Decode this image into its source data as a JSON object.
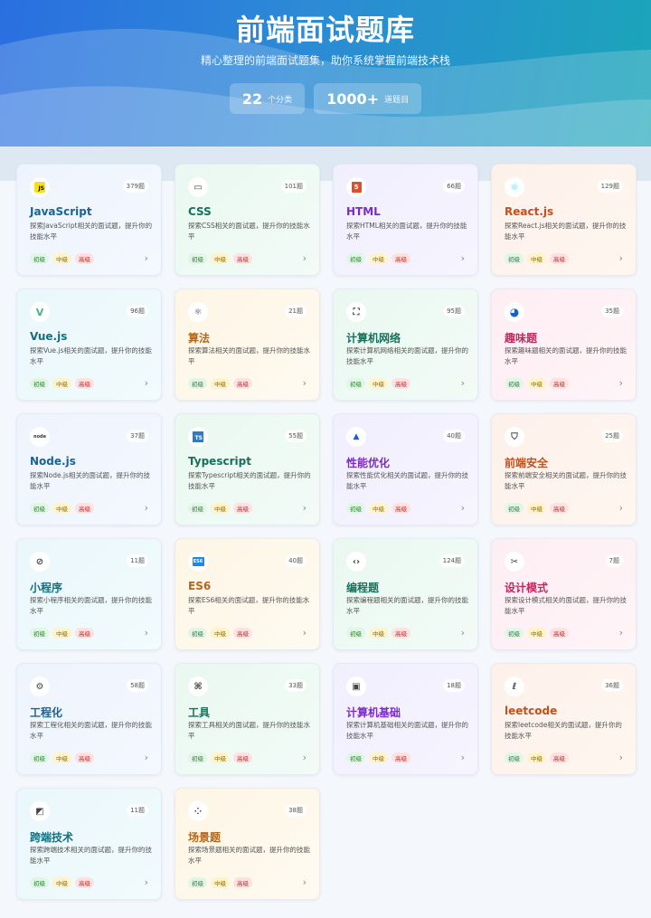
{
  "header": {
    "title": "前端面试题库",
    "subtitle": "精心整理的前端面试题集，助你系统掌握前端技术栈",
    "stats": [
      {
        "num": "22",
        "unit": "个分类"
      },
      {
        "num": "1000+",
        "unit": "道题目"
      }
    ]
  },
  "levels": {
    "easy": "初级",
    "mid": "中级",
    "hard": "高级"
  },
  "colors": {
    "blue": "#1b6396",
    "green": "#17705a",
    "purple": "#7b2cc4",
    "orange": "#c4501c",
    "teal": "#12707f",
    "amber": "#b5661a",
    "pink": "#c0285f"
  },
  "categories": [
    {
      "name": "JavaScript",
      "count": "379题",
      "desc": "探索JavaScript相关的面试题，提升你的技能水平",
      "icon": "js-icon",
      "glyph": "JS",
      "theme": "blue"
    },
    {
      "name": "CSS",
      "count": "101题",
      "desc": "探索CSS相关的面试题，提升你的技能水平",
      "icon": "css-icon",
      "glyph": "▭",
      "theme": "green"
    },
    {
      "name": "HTML",
      "count": "66题",
      "desc": "探索HTML相关的面试题，提升你的技能水平",
      "icon": "html5-icon",
      "glyph": "5",
      "theme": "purple"
    },
    {
      "name": "React.js",
      "count": "129题",
      "desc": "探索React.js相关的面试题，提升你的技能水平",
      "icon": "react-icon",
      "glyph": "⚛",
      "theme": "orange"
    },
    {
      "name": "Vue.js",
      "count": "96题",
      "desc": "探索Vue.js相关的面试题，提升你的技能水平",
      "icon": "vue-icon",
      "glyph": "V",
      "theme": "teal"
    },
    {
      "name": "算法",
      "count": "21题",
      "desc": "探索算法相关的面试题，提升你的技能水平",
      "icon": "atom-icon",
      "glyph": "⚛",
      "theme": "amber"
    },
    {
      "name": "计算机网络",
      "count": "95题",
      "desc": "探索计算机网络相关的面试题，提升你的技能水平",
      "icon": "network-icon",
      "glyph": "⛶",
      "theme": "green"
    },
    {
      "name": "趣味题",
      "count": "35题",
      "desc": "探索趣味题相关的面试题，提升你的技能水平",
      "icon": "pacman-icon",
      "glyph": "◕",
      "theme": "pink"
    },
    {
      "name": "Node.js",
      "count": "37题",
      "desc": "探索Node.js相关的面试题，提升你的技能水平",
      "icon": "nodejs-icon",
      "glyph": "node",
      "theme": "blue"
    },
    {
      "name": "Typescript",
      "count": "55题",
      "desc": "探索Typescript相关的面试题，提升你的技能水平",
      "icon": "typescript-icon",
      "glyph": "TS",
      "theme": "green"
    },
    {
      "name": "性能优化",
      "count": "40题",
      "desc": "探索性能优化相关的面试题，提升你的技能水平",
      "icon": "rocket-icon",
      "glyph": "▲",
      "theme": "purple"
    },
    {
      "name": "前端安全",
      "count": "25题",
      "desc": "探索前端安全相关的面试题，提升你的技能水平",
      "icon": "shield-icon",
      "glyph": "⛉",
      "theme": "orange"
    },
    {
      "name": "小程序",
      "count": "11题",
      "desc": "探索小程序相关的面试题，提升你的技能水平",
      "icon": "miniprogram-icon",
      "glyph": "⊘",
      "theme": "teal"
    },
    {
      "name": "ES6",
      "count": "40题",
      "desc": "探索ES6相关的面试题，提升你的技能水平",
      "icon": "es6-icon",
      "glyph": "ES6",
      "theme": "amber"
    },
    {
      "name": "编程题",
      "count": "124题",
      "desc": "探索编程题相关的面试题，提升你的技能水平",
      "icon": "code-icon",
      "glyph": "‹›",
      "theme": "green"
    },
    {
      "name": "设计模式",
      "count": "7题",
      "desc": "探索设计模式相关的面试题，提升你的技能水平",
      "icon": "design-tools-icon",
      "glyph": "✂",
      "theme": "pink"
    },
    {
      "name": "工程化",
      "count": "58题",
      "desc": "探索工程化相关的面试题，提升你的技能水平",
      "icon": "gears-icon",
      "glyph": "⚙",
      "theme": "blue"
    },
    {
      "name": "工具",
      "count": "33题",
      "desc": "探索工具相关的面试题，提升你的技能水平",
      "icon": "tools-icon",
      "glyph": "⌘",
      "theme": "green"
    },
    {
      "name": "计算机基础",
      "count": "18题",
      "desc": "探索计算机基础相关的面试题，提升你的技能水平",
      "icon": "monitor-icon",
      "glyph": "▣",
      "theme": "purple"
    },
    {
      "name": "leetcode",
      "count": "36题",
      "desc": "探索leetcode相关的面试题，提升你的技能水平",
      "icon": "leetcode-icon",
      "glyph": "ℓ",
      "theme": "orange"
    },
    {
      "name": "跨端技术",
      "count": "11题",
      "desc": "探索跨端技术相关的面试题，提升你的技能水平",
      "icon": "crossplatform-icon",
      "glyph": "◩",
      "theme": "teal"
    },
    {
      "name": "场景题",
      "count": "38题",
      "desc": "探索场景题相关的面试题，提升你的技能水平",
      "icon": "grid-icon",
      "glyph": "⁘",
      "theme": "amber"
    }
  ]
}
